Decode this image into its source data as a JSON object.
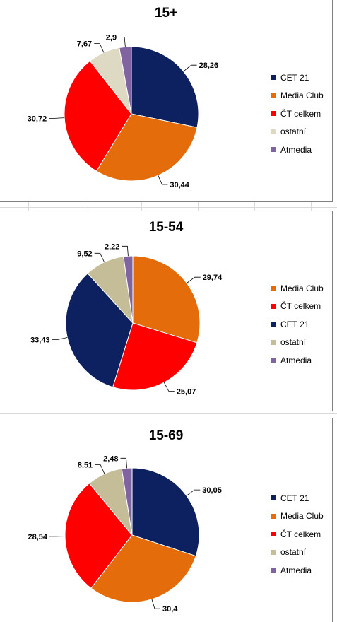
{
  "chart_data": [
    {
      "type": "pie",
      "title": "15+",
      "slices": [
        {
          "label": "CET 21",
          "value": 28.26,
          "display": "28,26",
          "color": "#0d2060"
        },
        {
          "label": "Media Club",
          "value": 30.44,
          "display": "30,44",
          "color": "#e46c0a"
        },
        {
          "label": "ČT celkem",
          "value": 30.72,
          "display": "30,72",
          "color": "#ff0000"
        },
        {
          "label": "ostatní",
          "value": 7.67,
          "display": "7,67",
          "color": "#ddd9c3"
        },
        {
          "label": "Atmedia",
          "value": 2.9,
          "display": "2,9",
          "color": "#8064a2"
        }
      ],
      "legend": [
        "CET 21",
        "Media Club",
        "ČT celkem",
        "ostatní",
        "Atmedia"
      ],
      "legend_position": "right"
    },
    {
      "type": "pie",
      "title": "15-54",
      "slices": [
        {
          "label": "Media Club",
          "value": 29.74,
          "display": "29,74",
          "color": "#e46c0a"
        },
        {
          "label": "ČT celkem",
          "value": 25.07,
          "display": "25,07",
          "color": "#ff0000"
        },
        {
          "label": "CET 21",
          "value": 33.43,
          "display": "33,43",
          "color": "#0d2060"
        },
        {
          "label": "ostatní",
          "value": 9.52,
          "display": "9,52",
          "color": "#c4bd97"
        },
        {
          "label": "Atmedia",
          "value": 2.22,
          "display": "2,22",
          "color": "#8064a2"
        }
      ],
      "legend": [
        "Media Club",
        "ČT celkem",
        "CET 21",
        "ostatní",
        "Atmedia"
      ],
      "legend_position": "right"
    },
    {
      "type": "pie",
      "title": "15-69",
      "slices": [
        {
          "label": "CET 21",
          "value": 30.05,
          "display": "30,05",
          "color": "#0d2060"
        },
        {
          "label": "Media Club",
          "value": 30.4,
          "display": "30,4",
          "color": "#e46c0a"
        },
        {
          "label": "ČT celkem",
          "value": 28.54,
          "display": "28,54",
          "color": "#ff0000"
        },
        {
          "label": "ostatní",
          "value": 8.51,
          "display": "8,51",
          "color": "#c4bd97"
        },
        {
          "label": "Atmedia",
          "value": 2.48,
          "display": "2,48",
          "color": "#8064a2"
        }
      ],
      "legend": [
        "CET 21",
        "Media Club",
        "ČT celkem",
        "ostatní",
        "Atmedia"
      ],
      "legend_position": "right"
    }
  ]
}
